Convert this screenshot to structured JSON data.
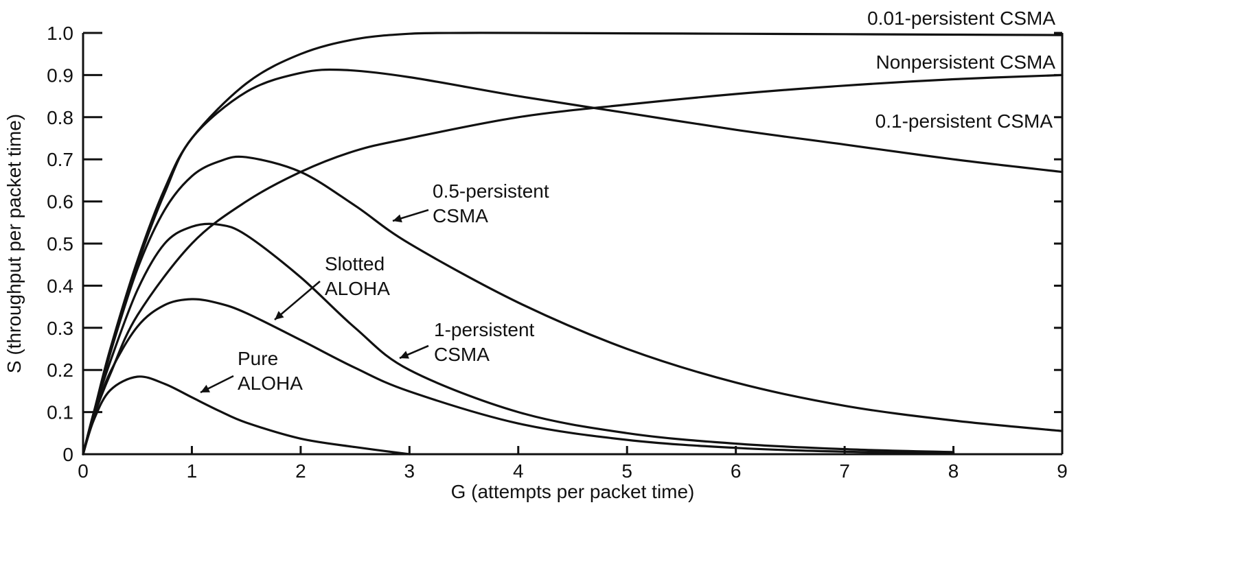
{
  "chart_data": {
    "type": "line",
    "xlabel": "G (attempts per packet time)",
    "ylabel": "S (throughput per packet time)",
    "xlim": [
      0,
      9
    ],
    "ylim": [
      0,
      1.0
    ],
    "xticks": [
      "0",
      "1",
      "2",
      "3",
      "4",
      "5",
      "6",
      "7",
      "8",
      "9"
    ],
    "yticks": [
      "0",
      "0.1",
      "0.2",
      "0.3",
      "0.4",
      "0.5",
      "0.6",
      "0.7",
      "0.8",
      "0.9",
      "1.0"
    ],
    "grid": false,
    "series": [
      {
        "name": "0.01-persistent CSMA",
        "label_lines": [
          "0.01-persistent CSMA"
        ],
        "x": [
          0,
          0.1,
          0.25,
          0.5,
          0.75,
          1,
          1.5,
          2,
          2.5,
          3,
          3.5,
          4,
          5,
          6,
          7,
          8,
          9
        ],
        "y": [
          0,
          0.1,
          0.25,
          0.46,
          0.63,
          0.75,
          0.88,
          0.95,
          0.985,
          0.998,
          1.0,
          1.0,
          0.999,
          0.998,
          0.997,
          0.996,
          0.995
        ]
      },
      {
        "name": "Nonpersistent CSMA",
        "label_lines": [
          "Nonpersistent CSMA"
        ],
        "x": [
          0,
          0.1,
          0.25,
          0.5,
          1,
          1.5,
          2,
          2.5,
          3,
          4,
          5,
          6,
          7,
          8,
          9
        ],
        "y": [
          0,
          0.09,
          0.19,
          0.33,
          0.5,
          0.6,
          0.67,
          0.72,
          0.75,
          0.8,
          0.83,
          0.855,
          0.875,
          0.89,
          0.9
        ]
      },
      {
        "name": "0.1-persistent CSMA",
        "label_lines": [
          "0.1-persistent CSMA"
        ],
        "x": [
          0,
          0.1,
          0.25,
          0.5,
          0.75,
          1,
          1.5,
          2,
          2.4,
          3,
          4,
          5,
          6,
          7,
          8,
          9
        ],
        "y": [
          0,
          0.1,
          0.24,
          0.45,
          0.62,
          0.75,
          0.86,
          0.905,
          0.912,
          0.895,
          0.85,
          0.81,
          0.77,
          0.735,
          0.7,
          0.67
        ]
      },
      {
        "name": "0.5-persistent CSMA",
        "label_lines": [
          "0.5-persistent",
          "CSMA"
        ],
        "x": [
          0,
          0.1,
          0.25,
          0.5,
          0.75,
          1,
          1.25,
          1.5,
          2,
          2.5,
          3,
          4,
          5,
          6,
          7,
          8,
          9
        ],
        "y": [
          0,
          0.1,
          0.24,
          0.44,
          0.58,
          0.66,
          0.695,
          0.705,
          0.67,
          0.59,
          0.5,
          0.36,
          0.25,
          0.17,
          0.115,
          0.08,
          0.055
        ]
      },
      {
        "name": "1-persistent CSMA",
        "label_lines": [
          "1-persistent",
          "CSMA"
        ],
        "x": [
          0,
          0.1,
          0.25,
          0.5,
          0.75,
          1,
          1.25,
          1.5,
          2,
          2.5,
          3,
          4,
          5,
          6,
          7,
          8
        ],
        "y": [
          0,
          0.1,
          0.22,
          0.39,
          0.5,
          0.54,
          0.545,
          0.52,
          0.42,
          0.3,
          0.2,
          0.1,
          0.05,
          0.025,
          0.012,
          0.005
        ]
      },
      {
        "name": "Slotted ALOHA",
        "label_lines": [
          "Slotted",
          "ALOHA"
        ],
        "x": [
          0,
          0.1,
          0.25,
          0.5,
          0.75,
          1,
          1.25,
          1.5,
          2,
          2.5,
          3,
          4,
          5,
          6,
          7,
          8
        ],
        "y": [
          0,
          0.09,
          0.195,
          0.303,
          0.354,
          0.368,
          0.358,
          0.335,
          0.271,
          0.205,
          0.149,
          0.073,
          0.034,
          0.015,
          0.006,
          0.003
        ]
      },
      {
        "name": "Pure ALOHA",
        "label_lines": [
          "Pure",
          "ALOHA"
        ],
        "x": [
          0,
          0.1,
          0.25,
          0.5,
          0.75,
          1,
          1.25,
          1.5,
          2,
          2.5,
          3
        ],
        "y": [
          0,
          0.082,
          0.152,
          0.184,
          0.167,
          0.135,
          0.103,
          0.075,
          0.037,
          0.017,
          0.0
        ]
      }
    ]
  }
}
